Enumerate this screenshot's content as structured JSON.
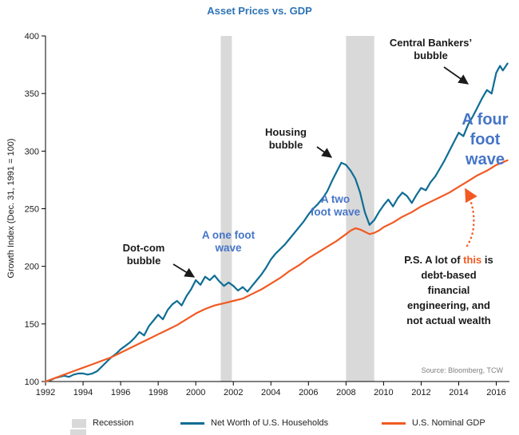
{
  "title": "Asset Prices vs. GDP",
  "y_axis_label": "Growth Index (Dec. 31, 1991 = 100)",
  "source": "Source: Bloomberg, TCW",
  "colors": {
    "networth": "#0f6d94",
    "gdp": "#f15a22",
    "recession": "#d9d9d9",
    "title": "#2e74b5",
    "wave_text": "#4675c8"
  },
  "legend": [
    {
      "label": "Recession"
    },
    {
      "label": "Net Worth of U.S. Households"
    },
    {
      "label": "U.S. Nominal GDP"
    }
  ],
  "annotations": {
    "dotcom": "Dot-com\nbubble",
    "one_foot": "A one foot\nwave",
    "housing": "Housing\nbubble",
    "two_foot": "A two\nfoot wave",
    "central": "Central Bankers’\nbubble",
    "four_foot": "A four\nfoot\nwave",
    "ps_prefix": "P.S. A lot of ",
    "ps_this": "this",
    "ps_suffix": " is\ndebt-based\nfinancial\nengineering, and\nnot actual wealth"
  },
  "chart_data": {
    "type": "line",
    "title": "Asset Prices vs. GDP",
    "xlabel": "",
    "ylabel": "Growth Index (Dec. 31, 1991 = 100)",
    "xlim": [
      1992,
      2016.7
    ],
    "ylim": [
      100,
      400
    ],
    "xticks": [
      1992,
      1994,
      1996,
      1998,
      2000,
      2002,
      2004,
      2006,
      2008,
      2010,
      2012,
      2014,
      2016
    ],
    "yticks": [
      100,
      150,
      200,
      250,
      300,
      350,
      400
    ],
    "grid": false,
    "legend_position": "bottom",
    "recession_bands": [
      [
        2001.33,
        2001.92
      ],
      [
        2008.0,
        2009.5
      ]
    ],
    "series": [
      {
        "name": "Net Worth of U.S. Households",
        "color": "#0f6d94",
        "points": [
          [
            1992.0,
            100
          ],
          [
            1992.25,
            101
          ],
          [
            1992.5,
            103
          ],
          [
            1992.75,
            104
          ],
          [
            1993.0,
            105
          ],
          [
            1993.25,
            104
          ],
          [
            1993.5,
            106
          ],
          [
            1993.75,
            107
          ],
          [
            1994.0,
            107
          ],
          [
            1994.25,
            106
          ],
          [
            1994.5,
            107
          ],
          [
            1994.75,
            109
          ],
          [
            1995.0,
            113
          ],
          [
            1995.25,
            117
          ],
          [
            1995.5,
            121
          ],
          [
            1995.75,
            124
          ],
          [
            1996.0,
            128
          ],
          [
            1996.25,
            131
          ],
          [
            1996.5,
            134
          ],
          [
            1996.75,
            138
          ],
          [
            1997.0,
            143
          ],
          [
            1997.25,
            140
          ],
          [
            1997.5,
            148
          ],
          [
            1997.75,
            153
          ],
          [
            1998.0,
            158
          ],
          [
            1998.25,
            154
          ],
          [
            1998.5,
            162
          ],
          [
            1998.75,
            167
          ],
          [
            1999.0,
            170
          ],
          [
            1999.25,
            166
          ],
          [
            1999.5,
            174
          ],
          [
            1999.75,
            180
          ],
          [
            2000.0,
            188
          ],
          [
            2000.25,
            184
          ],
          [
            2000.5,
            191
          ],
          [
            2000.75,
            188
          ],
          [
            2001.0,
            192
          ],
          [
            2001.25,
            187
          ],
          [
            2001.5,
            183
          ],
          [
            2001.75,
            186
          ],
          [
            2002.0,
            183
          ],
          [
            2002.25,
            179
          ],
          [
            2002.5,
            182
          ],
          [
            2002.75,
            178
          ],
          [
            2003.0,
            183
          ],
          [
            2003.25,
            188
          ],
          [
            2003.5,
            193
          ],
          [
            2003.75,
            199
          ],
          [
            2004.0,
            206
          ],
          [
            2004.25,
            211
          ],
          [
            2004.5,
            215
          ],
          [
            2004.75,
            219
          ],
          [
            2005.0,
            224
          ],
          [
            2005.25,
            229
          ],
          [
            2005.5,
            234
          ],
          [
            2005.75,
            239
          ],
          [
            2006.0,
            245
          ],
          [
            2006.25,
            250
          ],
          [
            2006.5,
            254
          ],
          [
            2006.75,
            259
          ],
          [
            2007.0,
            265
          ],
          [
            2007.25,
            274
          ],
          [
            2007.5,
            282
          ],
          [
            2007.75,
            290
          ],
          [
            2008.0,
            288
          ],
          [
            2008.25,
            283
          ],
          [
            2008.5,
            276
          ],
          [
            2008.75,
            264
          ],
          [
            2009.0,
            247
          ],
          [
            2009.25,
            236
          ],
          [
            2009.5,
            240
          ],
          [
            2009.75,
            247
          ],
          [
            2010.0,
            253
          ],
          [
            2010.25,
            258
          ],
          [
            2010.5,
            252
          ],
          [
            2010.75,
            259
          ],
          [
            2011.0,
            264
          ],
          [
            2011.25,
            261
          ],
          [
            2011.5,
            255
          ],
          [
            2011.75,
            262
          ],
          [
            2012.0,
            268
          ],
          [
            2012.25,
            266
          ],
          [
            2012.5,
            273
          ],
          [
            2012.75,
            278
          ],
          [
            2013.0,
            285
          ],
          [
            2013.25,
            292
          ],
          [
            2013.5,
            300
          ],
          [
            2013.75,
            308
          ],
          [
            2014.0,
            316
          ],
          [
            2014.25,
            313
          ],
          [
            2014.5,
            323
          ],
          [
            2014.75,
            330
          ],
          [
            2015.0,
            338
          ],
          [
            2015.25,
            346
          ],
          [
            2015.5,
            353
          ],
          [
            2015.75,
            350
          ],
          [
            2016.0,
            368
          ],
          [
            2016.2,
            374
          ],
          [
            2016.35,
            370
          ],
          [
            2016.6,
            376
          ]
        ]
      },
      {
        "name": "U.S. Nominal GDP",
        "color": "#f15a22",
        "points": [
          [
            1992.0,
            100
          ],
          [
            1992.5,
            103
          ],
          [
            1993.0,
            106
          ],
          [
            1993.5,
            109
          ],
          [
            1994.0,
            112
          ],
          [
            1994.5,
            115
          ],
          [
            1995.0,
            118
          ],
          [
            1995.5,
            121
          ],
          [
            1996.0,
            125
          ],
          [
            1996.5,
            129
          ],
          [
            1997.0,
            133
          ],
          [
            1997.5,
            137
          ],
          [
            1998.0,
            141
          ],
          [
            1998.5,
            145
          ],
          [
            1999.0,
            149
          ],
          [
            1999.5,
            154
          ],
          [
            2000.0,
            159
          ],
          [
            2000.5,
            163
          ],
          [
            2001.0,
            166
          ],
          [
            2001.5,
            168
          ],
          [
            2002.0,
            170
          ],
          [
            2002.5,
            172
          ],
          [
            2003.0,
            176
          ],
          [
            2003.5,
            180
          ],
          [
            2004.0,
            185
          ],
          [
            2004.5,
            190
          ],
          [
            2005.0,
            196
          ],
          [
            2005.5,
            201
          ],
          [
            2006.0,
            207
          ],
          [
            2006.5,
            212
          ],
          [
            2007.0,
            217
          ],
          [
            2007.5,
            222
          ],
          [
            2008.0,
            228
          ],
          [
            2008.25,
            231
          ],
          [
            2008.5,
            233
          ],
          [
            2008.75,
            232
          ],
          [
            2009.0,
            230
          ],
          [
            2009.25,
            228
          ],
          [
            2009.5,
            229
          ],
          [
            2009.75,
            231
          ],
          [
            2010.0,
            234
          ],
          [
            2010.5,
            238
          ],
          [
            2011.0,
            243
          ],
          [
            2011.5,
            247
          ],
          [
            2012.0,
            252
          ],
          [
            2012.5,
            256
          ],
          [
            2013.0,
            260
          ],
          [
            2013.5,
            264
          ],
          [
            2014.0,
            269
          ],
          [
            2014.5,
            274
          ],
          [
            2015.0,
            279
          ],
          [
            2015.5,
            283
          ],
          [
            2016.0,
            288
          ],
          [
            2016.6,
            292
          ]
        ]
      }
    ]
  }
}
